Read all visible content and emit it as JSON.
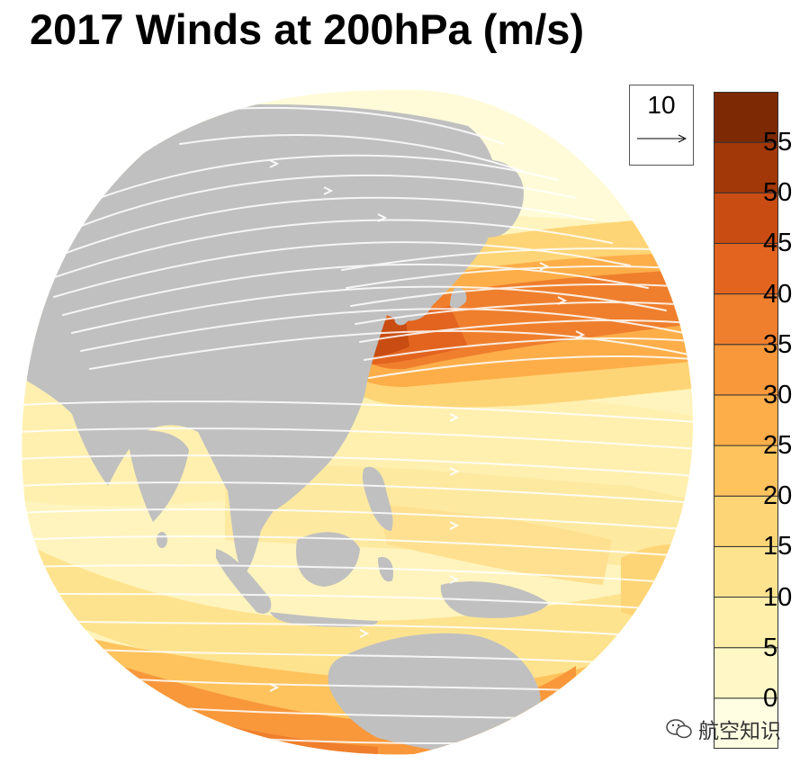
{
  "title": "2017 Winds at 200hPa (m/s)",
  "reference_vector": {
    "value": "10",
    "units": "m/s"
  },
  "colorbar": {
    "tick_labels": [
      "0",
      "5",
      "10",
      "15",
      "20",
      "25",
      "30",
      "35",
      "40",
      "45",
      "50",
      "55"
    ],
    "levels": [
      0,
      5,
      10,
      15,
      20,
      25,
      30,
      35,
      40,
      45,
      50,
      55,
      60
    ],
    "colors": [
      "#fffee2",
      "#fff8c6",
      "#ffefaa",
      "#fee38f",
      "#fed576",
      "#fec35d",
      "#fdae49",
      "#f8983b",
      "#ef7f2d",
      "#e2641f",
      "#c94c12",
      "#a23708",
      "#7d2904"
    ]
  },
  "map": {
    "projection": "orthographic",
    "center": "East Asia / Western Pacific",
    "land_color": "#c0c0c0",
    "streamline_color": "#ffffff",
    "jet_core": "strongest winds (40-50 m/s) over Japan and the North Pacific",
    "secondary_jet": "20-35 m/s along the southern edge near southern Australia"
  },
  "watermark": {
    "icon": "wechat-icon",
    "text": "航空知识"
  },
  "colors": {
    "title": "#000000",
    "background": "#ffffff"
  }
}
